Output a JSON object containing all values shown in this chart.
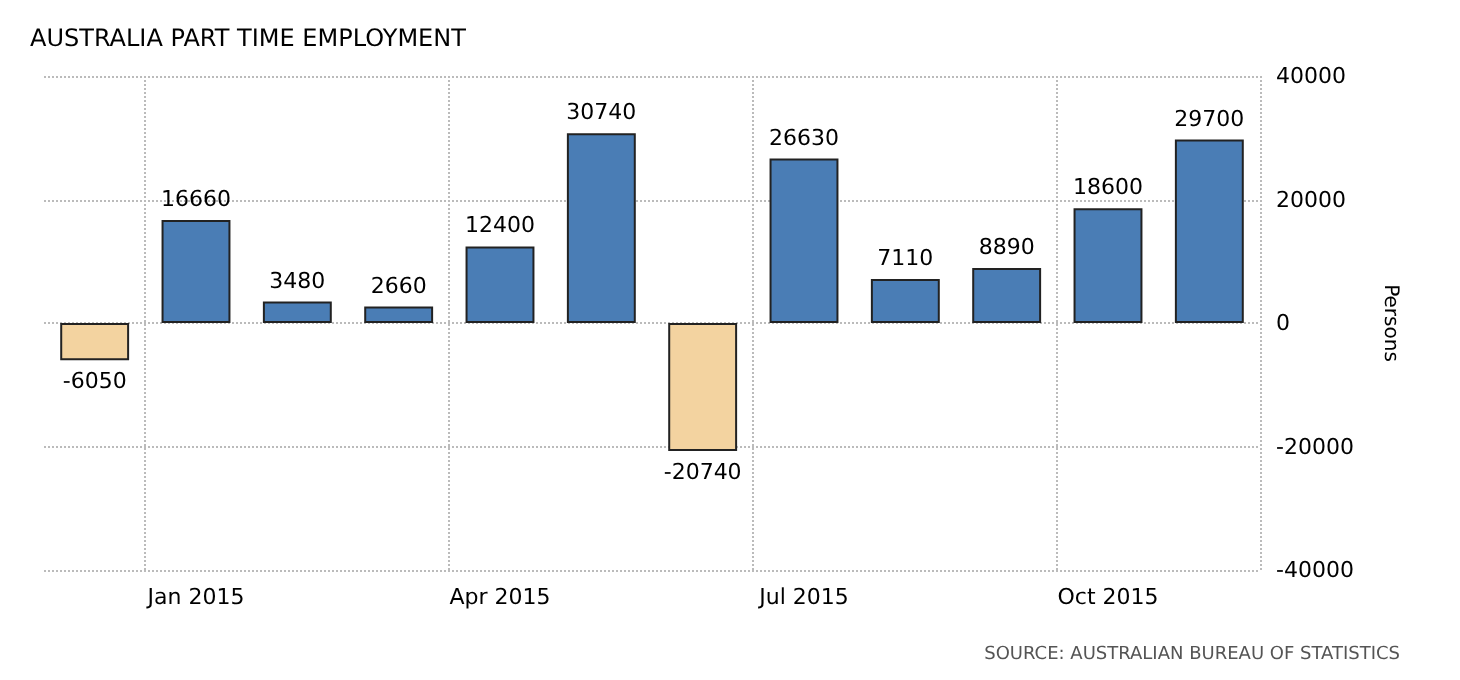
{
  "chart_data": {
    "type": "bar",
    "title": "AUSTRALIA PART TIME EMPLOYMENT",
    "ylabel": "Persons",
    "categories": [
      null,
      "Jan 2015",
      null,
      null,
      "Apr 2015",
      null,
      null,
      "Jul 2015",
      null,
      null,
      "Oct 2015",
      null
    ],
    "values": [
      -6050,
      16660,
      3480,
      2660,
      12400,
      30740,
      -20740,
      26630,
      7110,
      8890,
      18600,
      29700
    ],
    "colors": [
      "#f3d3a0",
      "#4a7db5",
      "#4a7db5",
      "#4a7db5",
      "#4a7db5",
      "#4a7db5",
      "#f3d3a0",
      "#4a7db5",
      "#4a7db5",
      "#4a7db5",
      "#4a7db5",
      "#4a7db5"
    ],
    "ylim": [
      -40000,
      40000
    ],
    "yticks": [
      -40000,
      -20000,
      0,
      20000,
      40000
    ],
    "grid": true,
    "data_labels": true,
    "annotations": [
      "SOURCE: AUSTRALIAN BUREAU OF STATISTICS"
    ]
  }
}
